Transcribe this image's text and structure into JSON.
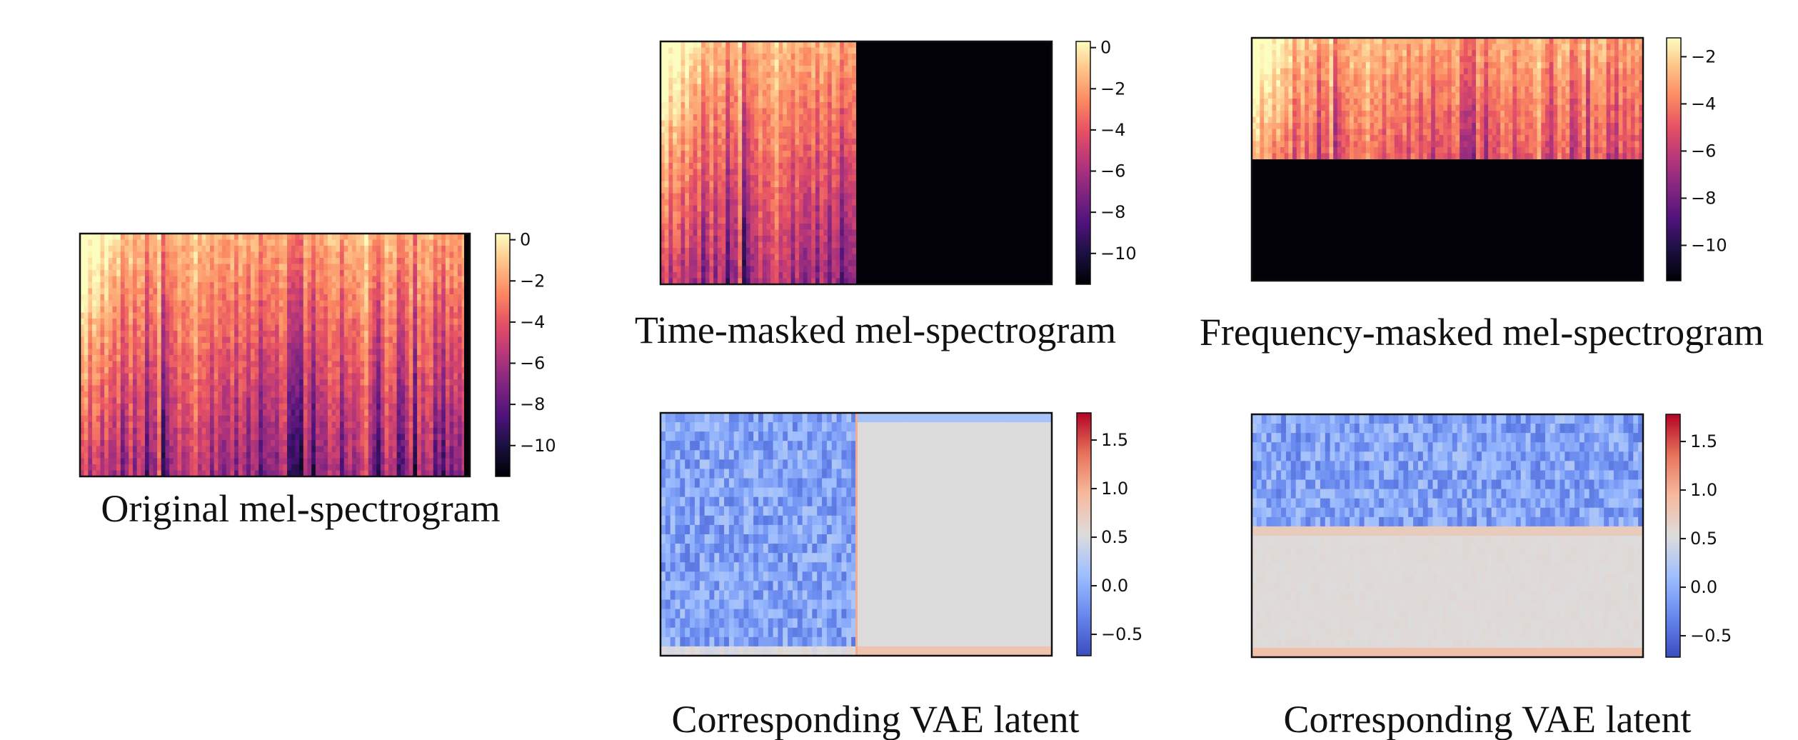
{
  "figure": {
    "panels": [
      {
        "key": "orig",
        "caption": "Original mel-spectrogram"
      },
      {
        "key": "time",
        "caption": "Time-masked mel-spectrogram"
      },
      {
        "key": "freq",
        "caption": "Frequency-masked mel-spectrogram"
      },
      {
        "key": "vae_time",
        "caption": "Corresponding VAE latent"
      },
      {
        "key": "vae_freq",
        "caption": "Corresponding VAE latent"
      }
    ]
  },
  "chart_data": [
    {
      "type": "heatmap",
      "title": "Original mel-spectrogram",
      "colormap": "magma",
      "colorbar": {
        "range": [
          -11.5,
          0.3
        ],
        "ticks": [
          0,
          -2,
          -4,
          -6,
          -8,
          -10
        ],
        "tick_labels": [
          "0",
          "−2",
          "−4",
          "−6",
          "−8",
          "−10"
        ]
      },
      "mask": "none"
    },
    {
      "type": "heatmap",
      "title": "Time-masked mel-spectrogram",
      "colormap": "magma",
      "colorbar": {
        "range": [
          -11.5,
          0.3
        ],
        "ticks": [
          0,
          -2,
          -4,
          -6,
          -8,
          -10
        ],
        "tick_labels": [
          "0",
          "−2",
          "−4",
          "−6",
          "−8",
          "−10"
        ]
      },
      "mask": "time",
      "masked_fraction": 0.5
    },
    {
      "type": "heatmap",
      "title": "Frequency-masked mel-spectrogram",
      "colormap": "magma",
      "colorbar": {
        "range": [
          -11.5,
          -1.2
        ],
        "ticks": [
          -2,
          -4,
          -6,
          -8,
          -10
        ],
        "tick_labels": [
          "−2",
          "−4",
          "−6",
          "−8",
          "−10"
        ]
      },
      "mask": "frequency",
      "masked_fraction": 0.5
    },
    {
      "type": "heatmap",
      "title": "Corresponding VAE latent",
      "colormap": "coolwarm",
      "colorbar": {
        "range": [
          -0.72,
          1.78
        ],
        "ticks": [
          1.5,
          1.0,
          0.5,
          0.0,
          -0.5
        ],
        "tick_labels": [
          "1.5",
          "1.0",
          "0.5",
          "0.0",
          "−0.5"
        ]
      },
      "mask": "time"
    },
    {
      "type": "heatmap",
      "title": "Corresponding VAE latent",
      "colormap": "coolwarm",
      "colorbar": {
        "range": [
          -0.72,
          1.78
        ],
        "ticks": [
          1.5,
          1.0,
          0.5,
          0.0,
          -0.5
        ],
        "tick_labels": [
          "1.5",
          "1.0",
          "0.5",
          "0.0",
          "−0.5"
        ]
      },
      "mask": "frequency"
    }
  ]
}
